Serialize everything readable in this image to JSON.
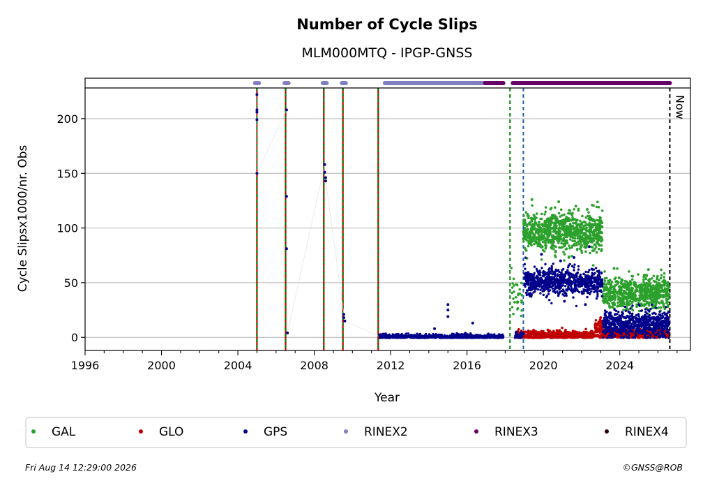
{
  "chart_data": {
    "type": "scatter",
    "title": "Number of Cycle Slips",
    "subtitle": "MLM000MTQ - IPGP-GNSS",
    "xlabel": "Year",
    "ylabel": "Cycle Slipsx1000/nr. Obs",
    "xlim": [
      1996,
      2027.7
    ],
    "ylim": [
      -12,
      237
    ],
    "xticks": [
      1996,
      2000,
      2004,
      2008,
      2012,
      2016,
      2020,
      2024
    ],
    "yticks": [
      0,
      50,
      100,
      150,
      200
    ],
    "grid": "horizontal",
    "legend_placement": "bottom",
    "now_label": "Now",
    "now_year": 2026.62,
    "series": [
      {
        "name": "GAL",
        "color": "#2ca02c",
        "segments": [
          {
            "from": 2018.3,
            "to": 2018.9,
            "mean": 35,
            "spread": 10,
            "count": 30
          },
          {
            "from": 2018.95,
            "to": 2023.1,
            "mean": 96,
            "spread": 9,
            "count": 900
          },
          {
            "from": 2023.1,
            "to": 2026.6,
            "mean": 40,
            "spread": 7,
            "count": 700
          }
        ],
        "extra_points": [
          [
            2019.4,
            126
          ],
          [
            2020.8,
            124
          ],
          [
            2021.7,
            120
          ],
          [
            2022.3,
            117
          ],
          [
            2023.7,
            63
          ],
          [
            2025.5,
            62
          ]
        ]
      },
      {
        "name": "GLO",
        "color": "#c00000",
        "segments": [
          {
            "from": 2018.6,
            "to": 2022.7,
            "mean": 2,
            "spread": 2,
            "count": 500
          },
          {
            "from": 2022.7,
            "to": 2023.1,
            "mean": 7,
            "spread": 4,
            "count": 80
          },
          {
            "from": 2023.1,
            "to": 2026.6,
            "mean": 3,
            "spread": 2,
            "count": 450
          }
        ],
        "extra_points": [
          [
            2023.0,
            18
          ],
          [
            2022.9,
            14
          ]
        ]
      },
      {
        "name": "GPS",
        "color": "#00008b",
        "segments": [
          {
            "from": 2011.4,
            "to": 2017.9,
            "mean": 0.5,
            "spread": 1.2,
            "count": 800
          },
          {
            "from": 2018.5,
            "to": 2019.0,
            "mean": 2,
            "spread": 2,
            "count": 40
          },
          {
            "from": 2019.0,
            "to": 2023.1,
            "mean": 51,
            "spread": 6,
            "count": 800
          },
          {
            "from": 2023.1,
            "to": 2026.6,
            "mean": 12,
            "spread": 6,
            "count": 700
          }
        ],
        "extra_points": [
          [
            2005.0,
            222
          ],
          [
            2005.0,
            208
          ],
          [
            2005.0,
            206
          ],
          [
            2005.0,
            199
          ],
          [
            2005.0,
            150
          ],
          [
            2006.55,
            208
          ],
          [
            2006.55,
            129
          ],
          [
            2006.55,
            81
          ],
          [
            2006.6,
            4
          ],
          [
            2008.55,
            158
          ],
          [
            2008.55,
            151
          ],
          [
            2008.6,
            146
          ],
          [
            2008.6,
            143
          ],
          [
            2009.55,
            21
          ],
          [
            2009.55,
            18
          ],
          [
            2009.6,
            15
          ],
          [
            2015.0,
            30
          ],
          [
            2015.0,
            25
          ],
          [
            2015.0,
            19
          ],
          [
            2016.3,
            13
          ],
          [
            2014.3,
            8
          ],
          [
            2019.9,
            76
          ],
          [
            2020.9,
            70
          ],
          [
            2021.6,
            73
          ],
          [
            2022.4,
            83
          ],
          [
            2019.3,
            38
          ],
          [
            2021.1,
            33
          ],
          [
            2022.2,
            30
          ]
        ]
      }
    ],
    "rinex_bars": [
      {
        "name": "RINEX2",
        "color": "#8080c0",
        "ranges": [
          [
            2004.9,
            2005.1
          ],
          [
            2006.45,
            2006.65
          ],
          [
            2008.45,
            2008.65
          ],
          [
            2009.45,
            2009.65
          ],
          [
            2011.7,
            2016.95
          ]
        ]
      },
      {
        "name": "RINEX3",
        "color": "#660066",
        "ranges": [
          [
            2016.95,
            2017.9
          ],
          [
            2018.4,
            2019.0
          ],
          [
            2019.0,
            2026.62
          ]
        ]
      },
      {
        "name": "RINEX4",
        "color": "#2a0010",
        "ranges": []
      }
    ],
    "event_lines": [
      {
        "year": 2005.0,
        "style": "red-green"
      },
      {
        "year": 2006.5,
        "style": "red-green"
      },
      {
        "year": 2008.5,
        "style": "red-green"
      },
      {
        "year": 2009.5,
        "style": "red-green"
      },
      {
        "year": 2011.35,
        "style": "red-green"
      },
      {
        "year": 2018.25,
        "style": "green-dashed"
      },
      {
        "year": 2018.95,
        "style": "blue-dashed"
      },
      {
        "year": 2026.62,
        "style": "black-dashed"
      }
    ]
  },
  "legend": [
    {
      "label": "GAL",
      "color": "#2ca02c"
    },
    {
      "label": "GLO",
      "color": "#c00000"
    },
    {
      "label": "GPS",
      "color": "#00008b"
    },
    {
      "label": "RINEX2",
      "color": "#8080c0"
    },
    {
      "label": "RINEX3",
      "color": "#660066"
    },
    {
      "label": "RINEX4",
      "color": "#2a0010"
    }
  ],
  "footer": {
    "timestamp": "Fri Aug 14 12:29:00 2026",
    "copyright": "©GNSS@ROB"
  }
}
